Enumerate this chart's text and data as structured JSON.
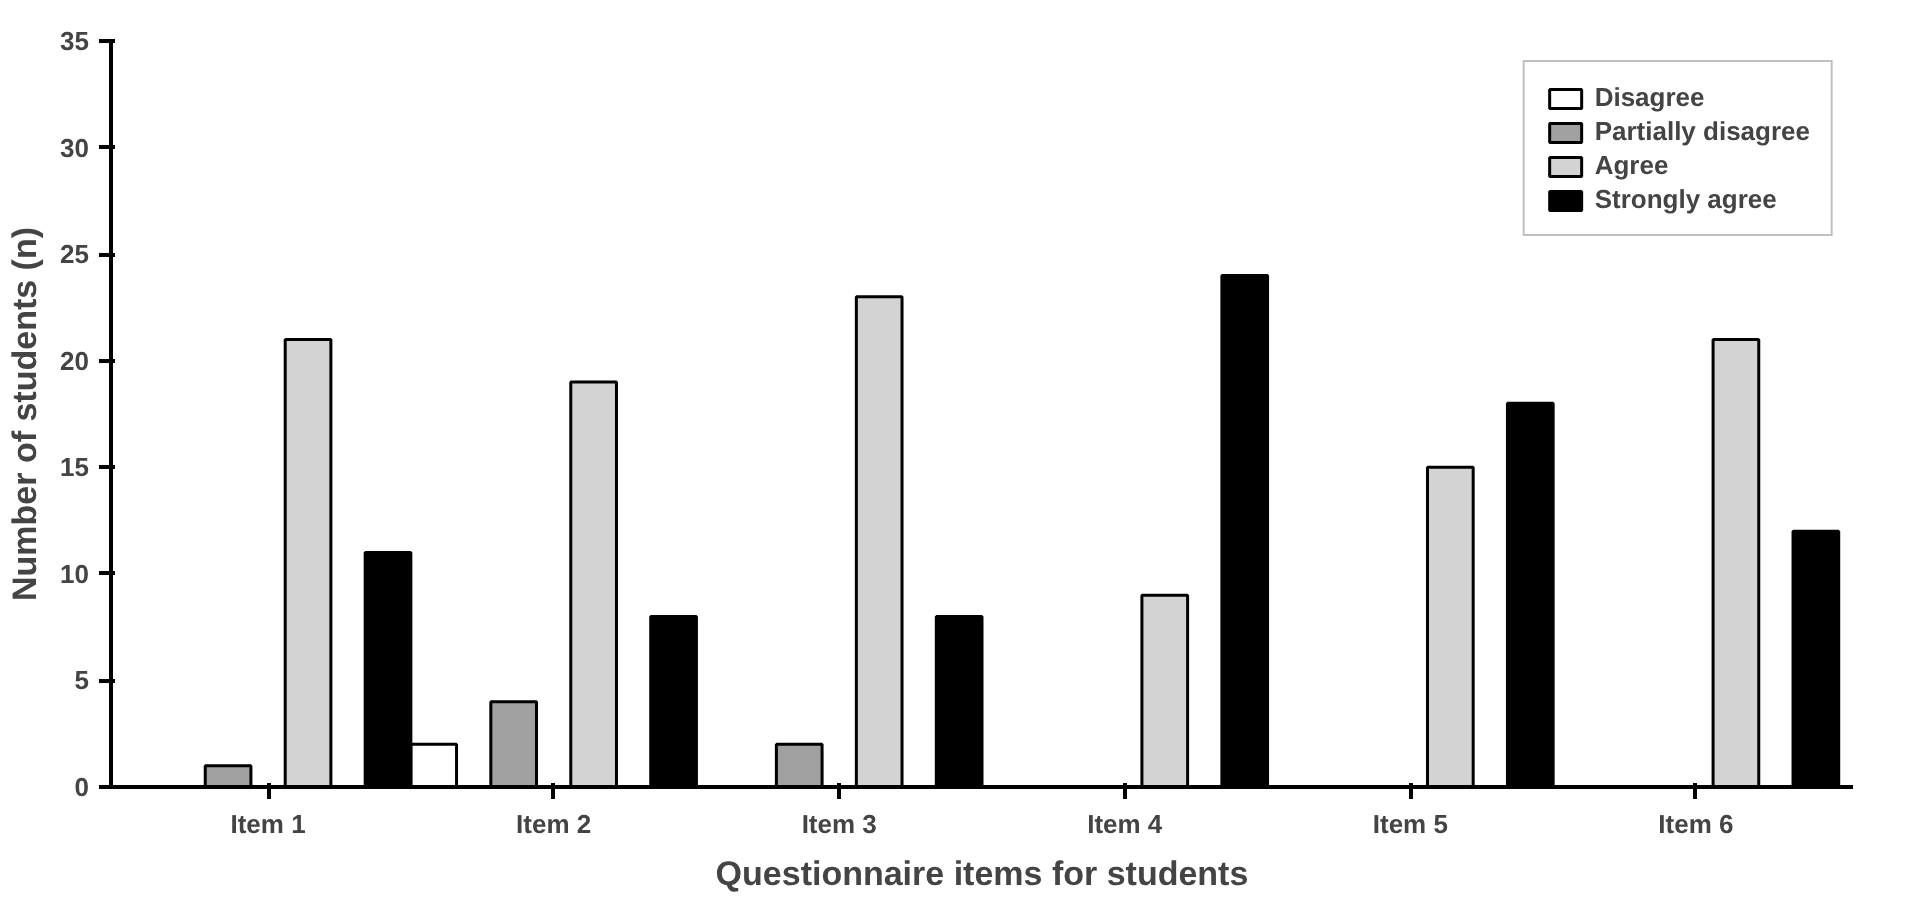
{
  "chart_data": {
    "type": "bar",
    "xlabel": "Questionnaire items for students",
    "ylabel": "Number of students (n)",
    "categories": [
      "Item 1",
      "Item 2",
      "Item 3",
      "Item 4",
      "Item 5",
      "Item 6"
    ],
    "series": [
      {
        "name": "Disagree",
        "color": "#ffffff",
        "values": [
          0,
          2,
          0,
          0,
          0,
          0
        ]
      },
      {
        "name": "Partially disagree",
        "color": "#a0a0a0",
        "values": [
          1,
          4,
          2,
          0,
          0,
          0
        ]
      },
      {
        "name": "Agree",
        "color": "#d3d3d3",
        "values": [
          21,
          19,
          23,
          9,
          15,
          21
        ]
      },
      {
        "name": "Strongly agree",
        "color": "#000000",
        "values": [
          11,
          8,
          8,
          24,
          18,
          12
        ]
      }
    ],
    "ylim": [
      0,
      35
    ],
    "yticks": [
      0,
      5,
      10,
      15,
      20,
      25,
      30,
      35
    ],
    "grid": false,
    "legend": "top right"
  }
}
